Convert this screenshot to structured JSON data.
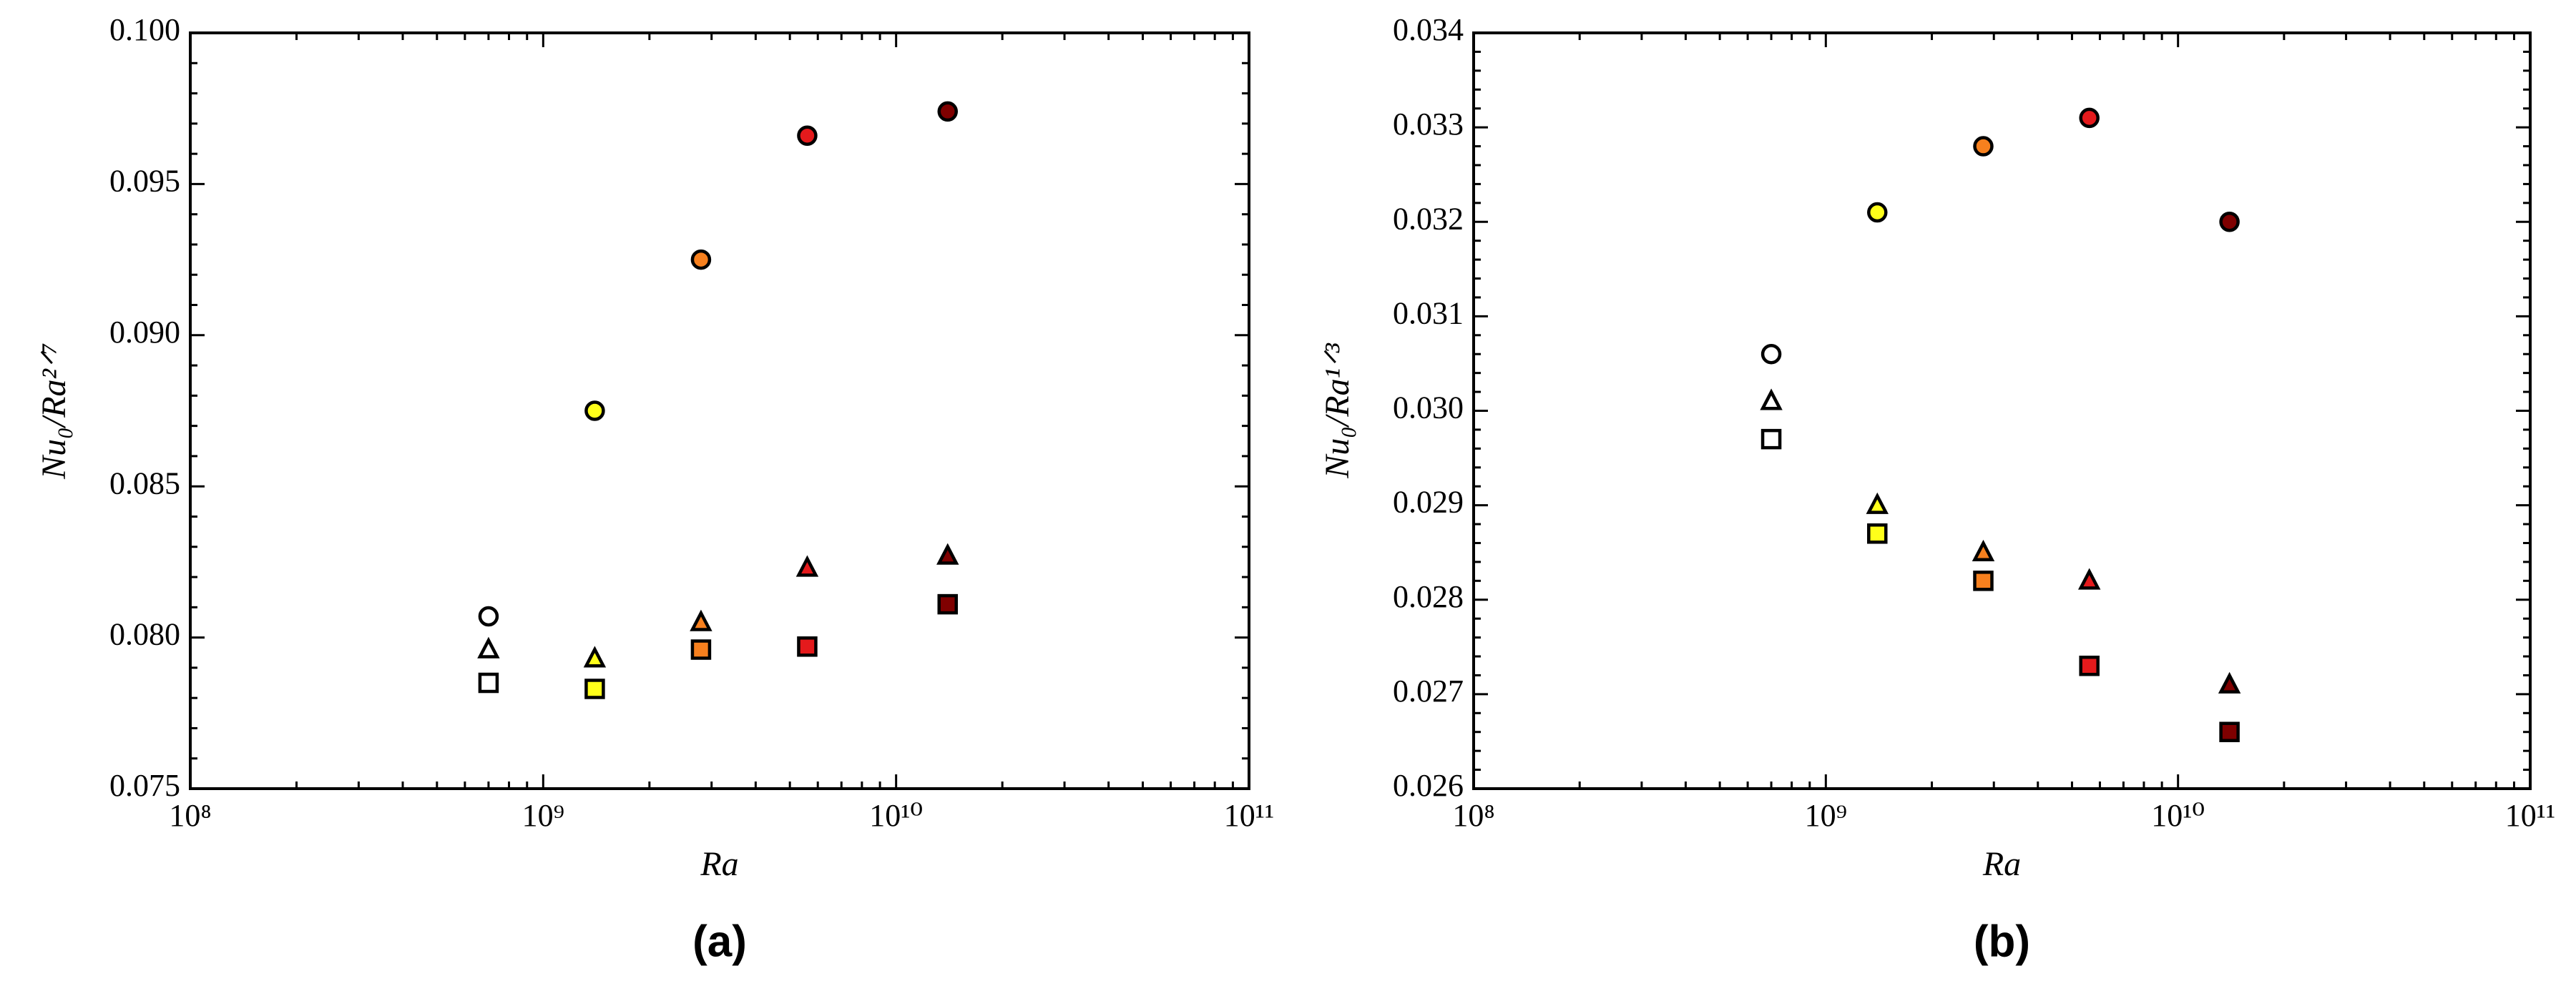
{
  "chart_data": [
    {
      "type": "scatter",
      "label": "(a)",
      "xlabel": "Ra",
      "ylabel": "Nu₀/Ra²ᐟ⁷",
      "xscale": "log",
      "xlim": [
        100000000,
        100000000000
      ],
      "xticks": [
        {
          "value": 100000000,
          "label": "10⁸"
        },
        {
          "value": 1000000000,
          "label": "10⁹"
        },
        {
          "value": 10000000000,
          "label": "10¹⁰"
        },
        {
          "value": 100000000000,
          "label": "10¹¹"
        }
      ],
      "ylim": [
        0.075,
        0.1
      ],
      "yticks": [
        0.075,
        {
          "value": 0.08,
          "label": "0.080"
        },
        0.085,
        {
          "value": 0.09,
          "label": "0.090"
        },
        0.095,
        {
          "value": 0.1,
          "label": "0.100"
        }
      ],
      "x": [
        700000000,
        1400000000,
        2800000000,
        5600000000,
        14000000000
      ],
      "colors": [
        "#ffffff",
        "#ffff1a",
        "#f7801e",
        "#e41a1c",
        "#7f0000"
      ],
      "series": [
        {
          "marker": "circle",
          "values": [
            0.0807,
            0.0875,
            0.0925,
            0.0966,
            0.0974
          ]
        },
        {
          "marker": "triangle",
          "values": [
            0.0796,
            0.0793,
            0.0805,
            0.0823,
            0.0827
          ]
        },
        {
          "marker": "square",
          "values": [
            0.0785,
            0.0783,
            0.0796,
            0.0797,
            0.0811
          ]
        }
      ]
    },
    {
      "type": "scatter",
      "label": "(b)",
      "xlabel": "Ra",
      "ylabel": "Nu₀/Ra¹ᐟ³",
      "xscale": "log",
      "xlim": [
        100000000,
        100000000000
      ],
      "xticks": [
        {
          "value": 100000000,
          "label": "10⁸"
        },
        {
          "value": 1000000000,
          "label": "10⁹"
        },
        {
          "value": 10000000000,
          "label": "10¹⁰"
        },
        {
          "value": 100000000000,
          "label": "10¹¹"
        }
      ],
      "ylim": [
        0.026,
        0.034
      ],
      "yticks": [
        0.026,
        0.027,
        0.028,
        0.029,
        {
          "value": 0.03,
          "label": "0.030"
        },
        0.031,
        0.032,
        0.033,
        0.034
      ],
      "x": [
        700000000,
        1400000000,
        2800000000,
        5600000000,
        14000000000
      ],
      "colors": [
        "#ffffff",
        "#ffff1a",
        "#f7801e",
        "#e41a1c",
        "#7f0000"
      ],
      "series": [
        {
          "marker": "circle",
          "values": [
            0.0306,
            0.0321,
            0.0328,
            0.0331,
            0.032
          ]
        },
        {
          "marker": "triangle",
          "values": [
            0.0301,
            0.029,
            0.0285,
            0.0282,
            0.0271
          ]
        },
        {
          "marker": "square",
          "values": [
            0.0297,
            0.0287,
            0.0282,
            0.0273,
            0.0266
          ]
        }
      ]
    }
  ]
}
